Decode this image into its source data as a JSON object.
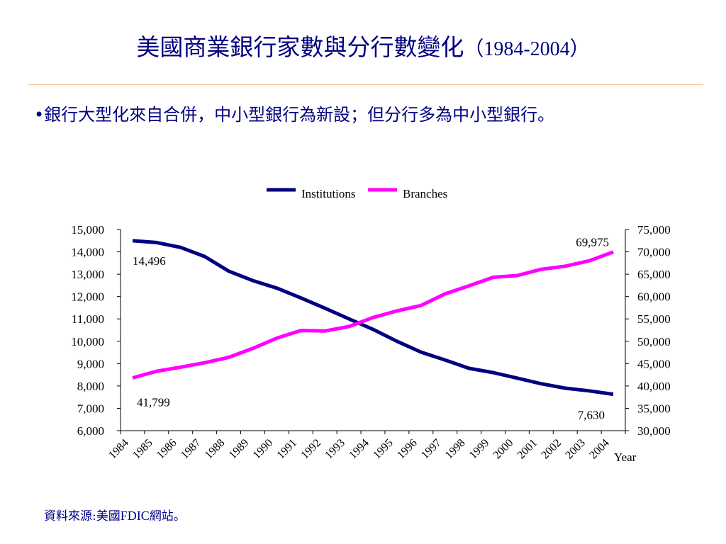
{
  "slide": {
    "title": "美國商業銀行家數與分行數變化",
    "title_years": "（1984-2004）",
    "bullet": "•銀行大型化來自合併，中小型銀行為新設；但分行多為中小型銀行。",
    "source_prefix": "資料來源:美國",
    "source_org": "FDIC",
    "source_suffix": "網站。"
  },
  "chart_data": {
    "type": "line",
    "title": "",
    "xlabel": "Year",
    "ylabel": "",
    "x": [
      "1984",
      "1985",
      "1986",
      "1987",
      "1988",
      "1989",
      "1990",
      "1991",
      "1992",
      "1993",
      "1994",
      "1995",
      "1996",
      "1997",
      "1998",
      "1999",
      "2000",
      "2001",
      "2002",
      "2003",
      "2004"
    ],
    "ylim": [
      6000,
      15000
    ],
    "y2lim": [
      30000,
      75000
    ],
    "yticks": [
      "6,000",
      "7,000",
      "8,000",
      "9,000",
      "10,000",
      "11,000",
      "12,000",
      "13,000",
      "14,000",
      "15,000"
    ],
    "y2ticks": [
      "30,000",
      "35,000",
      "40,000",
      "45,000",
      "50,000",
      "55,000",
      "60,000",
      "65,000",
      "70,000",
      "75,000"
    ],
    "legend_position": "top",
    "grid": false,
    "series": [
      {
        "name": "Institutions",
        "axis": "left",
        "color": "#000080",
        "values": [
          14496,
          14417,
          14199,
          13793,
          13137,
          12715,
          12378,
          11938,
          11478,
          11004,
          10535,
          10000,
          9513,
          9162,
          8790,
          8600,
          8350,
          8100,
          7900,
          7780,
          7630
        ]
      },
      {
        "name": "Branches",
        "axis": "right",
        "color": "#ff00ff",
        "values": [
          41799,
          43300,
          44200,
          45200,
          46400,
          48400,
          50700,
          52400,
          52300,
          53300,
          55300,
          56800,
          58000,
          60600,
          62400,
          64300,
          64700,
          66100,
          66800,
          68000,
          69975
        ]
      }
    ],
    "annotations": [
      {
        "series": "Institutions",
        "index": 0,
        "text": "14,496"
      },
      {
        "series": "Branches",
        "index": 0,
        "text": "41,799"
      },
      {
        "series": "Branches",
        "index": 20,
        "text": "69,975"
      },
      {
        "series": "Institutions",
        "index": 20,
        "text": "7,630"
      }
    ]
  }
}
